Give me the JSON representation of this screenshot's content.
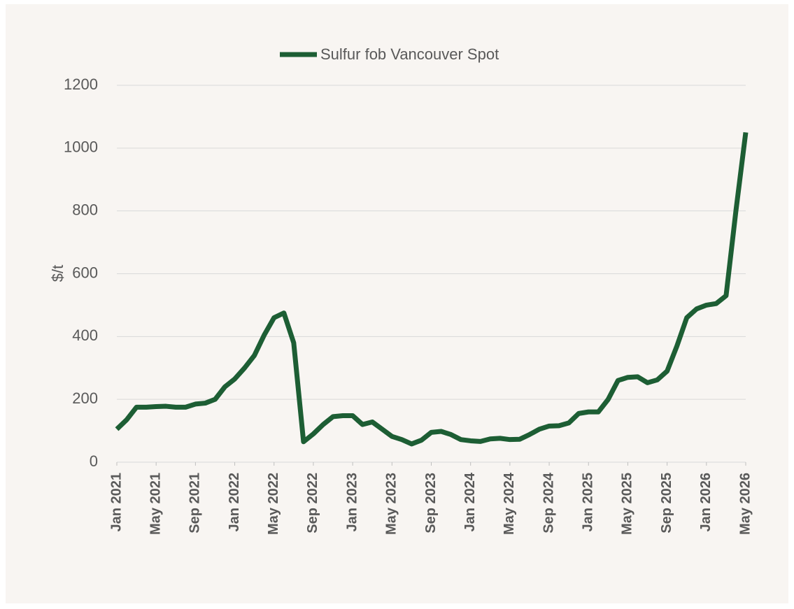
{
  "chart_data": {
    "type": "line",
    "y_label": "$/t",
    "x": [
      "2021-01",
      "2021-02",
      "2021-03",
      "2021-04",
      "2021-05",
      "2021-06",
      "2021-07",
      "2021-08",
      "2021-09",
      "2021-10",
      "2021-11",
      "2021-12",
      "2022-01",
      "2022-02",
      "2022-03",
      "2022-04",
      "2022-05",
      "2022-06",
      "2022-07",
      "2022-08",
      "2022-09",
      "2022-10",
      "2022-11",
      "2022-12",
      "2023-01",
      "2023-02",
      "2023-03",
      "2023-04",
      "2023-05",
      "2023-06",
      "2023-07",
      "2023-08",
      "2023-09",
      "2023-10",
      "2023-11",
      "2023-12",
      "2024-01",
      "2024-02",
      "2024-03",
      "2024-04",
      "2024-05",
      "2024-06",
      "2024-07",
      "2024-08",
      "2024-09",
      "2024-10",
      "2024-11",
      "2024-12",
      "2025-01",
      "2025-02",
      "2025-03",
      "2025-04",
      "2025-05",
      "2025-06",
      "2025-07",
      "2025-08",
      "2025-09",
      "2025-10",
      "2025-11",
      "2025-12",
      "2026-01",
      "2026-02",
      "2026-03",
      "2026-04",
      "2026-05"
    ],
    "series": [
      {
        "name": "Sulfur fob Vancouver Spot",
        "color": "#1d5e34",
        "values": [
          105,
          135,
          175,
          175,
          177,
          178,
          175,
          175,
          185,
          188,
          200,
          240,
          265,
          300,
          340,
          405,
          460,
          475,
          380,
          65,
          90,
          120,
          145,
          148,
          148,
          120,
          128,
          105,
          82,
          72,
          58,
          70,
          95,
          98,
          88,
          72,
          68,
          66,
          74,
          76,
          72,
          73,
          88,
          105,
          115,
          116,
          125,
          155,
          160,
          160,
          200,
          260,
          270,
          272,
          253,
          262,
          290,
          370,
          460,
          488,
          500,
          505,
          530,
          800,
          1050
        ]
      }
    ],
    "xlim": [
      "2021-01",
      "2026-05"
    ],
    "xticks": [
      {
        "value": "2021-01",
        "label": "Jan 2021"
      },
      {
        "value": "2021-05",
        "label": "May 2021"
      },
      {
        "value": "2021-09",
        "label": "Sep 2021"
      },
      {
        "value": "2022-01",
        "label": "Jan 2022"
      },
      {
        "value": "2022-05",
        "label": "May 2022"
      },
      {
        "value": "2022-09",
        "label": "Sep 2022"
      },
      {
        "value": "2023-01",
        "label": "Jan 2023"
      },
      {
        "value": "2023-05",
        "label": "May 2023"
      },
      {
        "value": "2023-09",
        "label": "Sep 2023"
      },
      {
        "value": "2024-01",
        "label": "Jan 2024"
      },
      {
        "value": "2024-05",
        "label": "May 2024"
      },
      {
        "value": "2024-09",
        "label": "Sep 2024"
      },
      {
        "value": "2025-01",
        "label": "Jan 2025"
      },
      {
        "value": "2025-05",
        "label": "May 2025"
      },
      {
        "value": "2025-09",
        "label": "Sep 2025"
      },
      {
        "value": "2026-01",
        "label": "Jan 2026"
      },
      {
        "value": "2026-05",
        "label": "May 2026"
      }
    ],
    "ylim": [
      0,
      1200
    ],
    "yticks": [
      0,
      200,
      400,
      600,
      800,
      1000,
      1200
    ],
    "grid": true,
    "legend": "top"
  }
}
